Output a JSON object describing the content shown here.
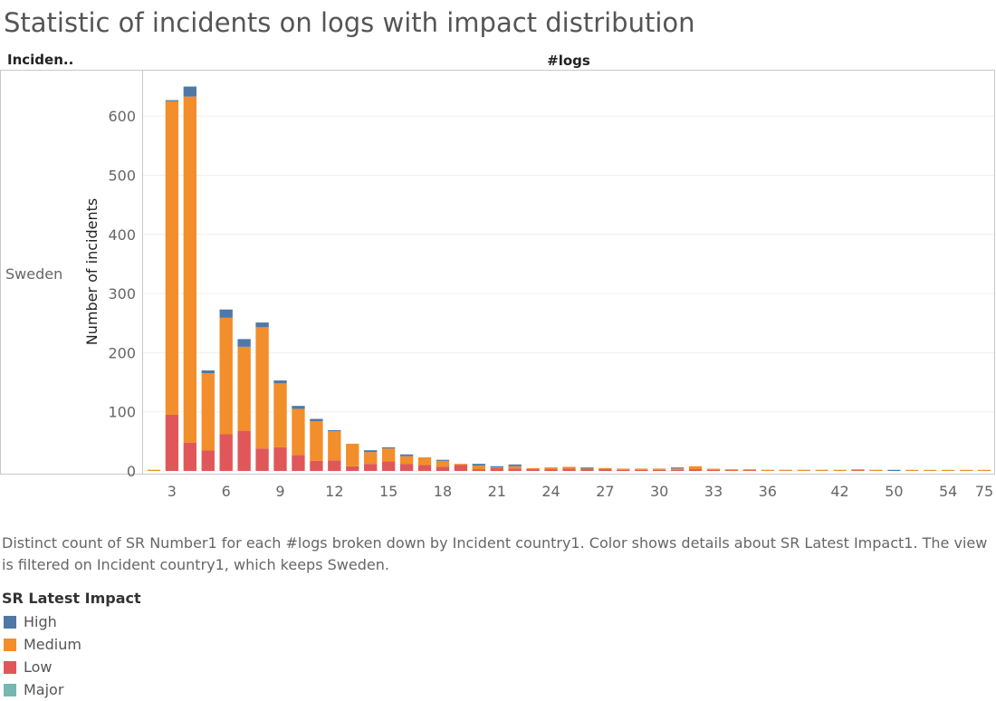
{
  "title": "Statistic of incidents on logs with impact distribution",
  "row_header": "Inciden..",
  "column_header": "#logs",
  "row_label": "Sweden",
  "caption": "Distinct count of SR Number1 for each #logs broken down by Incident country1.  Color shows details about SR Latest Impact1. The view is filtered on Incident country1, which keeps Sweden.",
  "legend": {
    "title": "SR Latest Impact",
    "items": [
      {
        "label": "High",
        "color": "#4e79a7"
      },
      {
        "label": "Medium",
        "color": "#f28e2b"
      },
      {
        "label": "Low",
        "color": "#e15759"
      },
      {
        "label": "Major",
        "color": "#76b7b2"
      }
    ]
  },
  "chart_data": {
    "type": "bar",
    "stacked": true,
    "ylabel": "Number of incidents",
    "xlabel": "#logs",
    "ylim": [
      0,
      700
    ],
    "y_ticks": [
      0,
      100,
      200,
      300,
      400,
      500,
      600
    ],
    "x_tick_labels": [
      "3",
      "6",
      "9",
      "12",
      "15",
      "18",
      "21",
      "24",
      "27",
      "30",
      "33",
      "36",
      "42",
      "50",
      "54",
      "75"
    ],
    "categories": [
      "2",
      "3",
      "4",
      "5",
      "6",
      "7",
      "8",
      "9",
      "10",
      "11",
      "12",
      "13",
      "14",
      "15",
      "16",
      "17",
      "18",
      "19",
      "20",
      "21",
      "22",
      "23",
      "24",
      "25",
      "26",
      "27",
      "28",
      "29",
      "30",
      "31",
      "32",
      "33",
      "34",
      "35",
      "36",
      "37",
      "38",
      "39",
      "42",
      "43",
      "45",
      "50",
      "52",
      "53",
      "54",
      "60",
      "75"
    ],
    "series": [
      {
        "name": "Low",
        "color": "#e15759",
        "values": [
          0,
          95,
          48,
          35,
          62,
          68,
          38,
          40,
          27,
          17,
          18,
          8,
          12,
          16,
          12,
          10,
          7,
          10,
          3,
          5,
          4,
          3,
          3,
          4,
          3,
          3,
          2,
          2,
          2,
          2,
          3,
          2,
          1,
          1,
          0,
          0,
          0,
          0,
          0,
          1,
          0,
          0,
          0,
          0,
          0,
          0,
          0
        ]
      },
      {
        "name": "Medium",
        "color": "#f28e2b",
        "values": [
          2,
          530,
          585,
          130,
          197,
          142,
          205,
          108,
          78,
          67,
          49,
          38,
          20,
          22,
          13,
          13,
          10,
          2,
          6,
          1,
          4,
          1,
          3,
          3,
          1,
          2,
          2,
          2,
          2,
          2,
          5,
          1,
          1,
          1,
          2,
          2,
          2,
          2,
          2,
          1,
          2,
          0,
          1,
          1,
          1,
          1,
          1
        ]
      },
      {
        "name": "High",
        "color": "#4e79a7",
        "values": [
          0,
          2,
          17,
          5,
          14,
          13,
          8,
          5,
          5,
          4,
          2,
          0,
          3,
          2,
          3,
          0,
          1,
          0,
          3,
          2,
          3,
          0,
          0,
          0,
          1,
          0,
          0,
          0,
          0,
          1,
          0,
          0,
          0,
          0,
          0,
          0,
          0,
          0,
          0,
          0,
          0,
          1,
          0,
          0,
          0,
          0,
          0
        ]
      },
      {
        "name": "Major",
        "color": "#76b7b2",
        "values": [
          0,
          0,
          0,
          0,
          0,
          0,
          0,
          0,
          0,
          0,
          0,
          0,
          0,
          0,
          0,
          0,
          0,
          0,
          0,
          0,
          0,
          0,
          0,
          0,
          0,
          0,
          0,
          0,
          0,
          0,
          0,
          0,
          0,
          0,
          0,
          0,
          0,
          0,
          0,
          0,
          0,
          0,
          0,
          0,
          0,
          0,
          0
        ]
      }
    ]
  }
}
